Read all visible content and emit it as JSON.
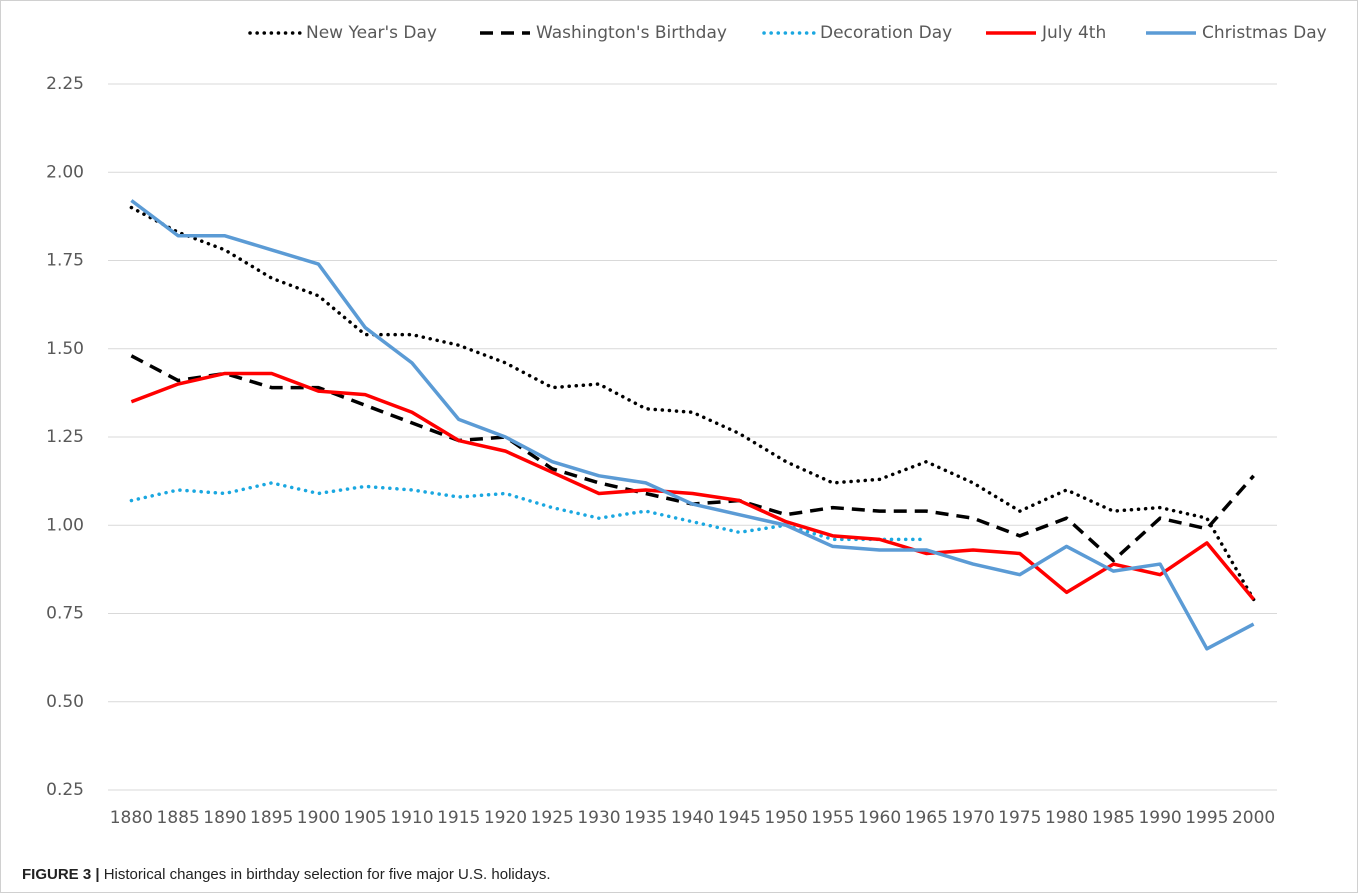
{
  "chart_data": {
    "type": "line",
    "categories": [
      "1880",
      "1885",
      "1890",
      "1895",
      "1900",
      "1905",
      "1910",
      "1915",
      "1920",
      "1925",
      "1930",
      "1935",
      "1940",
      "1945",
      "1950",
      "1955",
      "1960",
      "1965",
      "1970",
      "1975",
      "1980",
      "1985",
      "1990",
      "1995",
      "2000"
    ],
    "series": [
      {
        "name": "New Year's Day",
        "color": "#000000",
        "dash": "dotted",
        "values": [
          1.9,
          1.83,
          1.78,
          1.7,
          1.65,
          1.54,
          1.54,
          1.51,
          1.46,
          1.39,
          1.4,
          1.33,
          1.32,
          1.26,
          1.18,
          1.12,
          1.13,
          1.18,
          1.12,
          1.04,
          1.1,
          1.04,
          1.05,
          1.02,
          0.79
        ]
      },
      {
        "name": "Washington's Birthday",
        "color": "#000000",
        "dash": "dashed",
        "values": [
          1.48,
          1.41,
          1.43,
          1.39,
          1.39,
          1.34,
          1.29,
          1.24,
          1.25,
          1.16,
          1.12,
          1.09,
          1.06,
          1.07,
          1.03,
          1.05,
          1.04,
          1.04,
          1.02,
          0.97,
          1.02,
          0.9,
          1.02,
          0.99,
          1.14
        ]
      },
      {
        "name": "Decoration Day",
        "color": "#1aa7e0",
        "dash": "dotted",
        "values": [
          1.07,
          1.1,
          1.09,
          1.12,
          1.09,
          1.11,
          1.1,
          1.08,
          1.09,
          1.05,
          1.02,
          1.04,
          1.01,
          0.98,
          1.0,
          0.96,
          0.96,
          0.96,
          null,
          null,
          null,
          null,
          null,
          null,
          null
        ]
      },
      {
        "name": "July 4th",
        "color": "#ff0000",
        "dash": "solid",
        "values": [
          1.35,
          1.4,
          1.43,
          1.43,
          1.38,
          1.37,
          1.32,
          1.24,
          1.21,
          1.15,
          1.09,
          1.1,
          1.09,
          1.07,
          1.01,
          0.97,
          0.96,
          0.92,
          0.93,
          0.92,
          0.81,
          0.89,
          0.86,
          0.95,
          0.79
        ]
      },
      {
        "name": "Christmas Day",
        "color": "#5b9bd5",
        "dash": "solid",
        "values": [
          1.92,
          1.82,
          1.82,
          1.78,
          1.74,
          1.56,
          1.46,
          1.3,
          1.25,
          1.18,
          1.14,
          1.12,
          1.06,
          1.03,
          1.0,
          0.94,
          0.93,
          0.93,
          0.89,
          0.86,
          0.94,
          0.87,
          0.89,
          0.65,
          0.72
        ]
      }
    ],
    "ylim": [
      0.25,
      2.25
    ],
    "yticks": [
      0.25,
      {
        "value": 0.5,
        "label": "0.50"
      },
      0.75,
      {
        "value": 1,
        "label": "1.00"
      },
      1.25,
      {
        "value": 1.5,
        "label": "1.50"
      },
      1.75,
      {
        "value": 2,
        "label": "2.00"
      },
      2.25
    ],
    "grid": true,
    "legend": "top"
  },
  "caption": {
    "label": "FIGURE 3 |",
    "text": "Historical changes in birthday selection for five major U.S. holidays."
  }
}
